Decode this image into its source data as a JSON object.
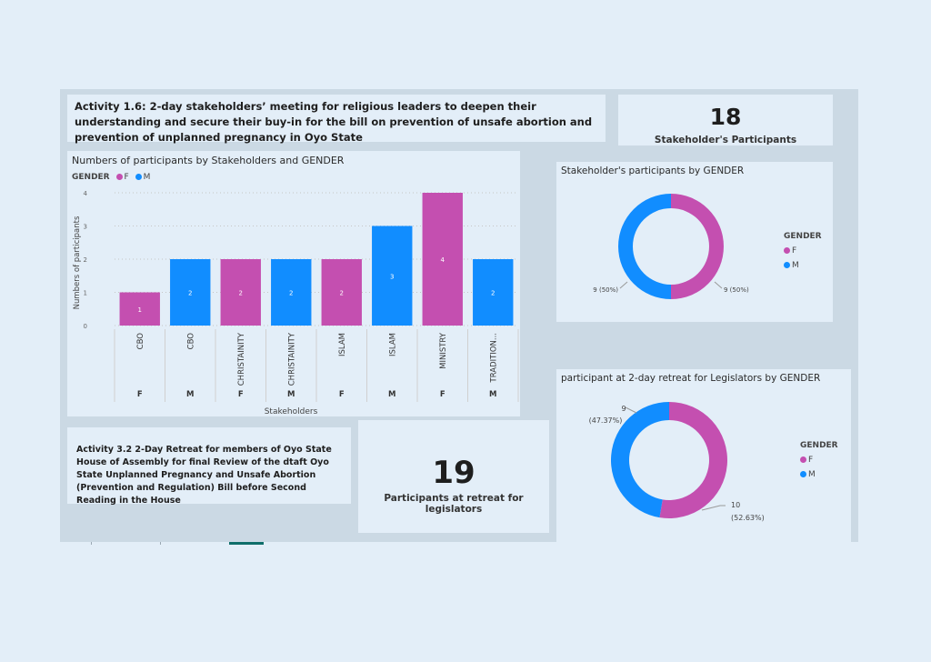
{
  "header": {
    "activity_1_6": "Activity 1.6: 2-day stakeholders’ meeting for religious leaders to deepen their understanding and secure their buy-in for the bill on prevention of unsafe abortion and prevention of unplanned pregnancy in Oyo State",
    "activity_3_2": "Activity 3.2 2-Day Retreat for members of Oyo State House of Assembly for final Review of the dtaft Oyo State Unplanned Pregnancy and Unsafe Abortion (Prevention and Regulation) Bill before Second Reading in the House"
  },
  "kpis": {
    "stakeholders": {
      "value": "18",
      "label": "Stakeholder's Participants"
    },
    "retreat": {
      "value": "19",
      "label": "Participants at retreat for legislators"
    }
  },
  "colors": {
    "F": "#c44fb0",
    "M": "#118dff",
    "background": "#e3eef8",
    "canvas": "#cbd9e4"
  },
  "chart_data": [
    {
      "type": "bar",
      "title": "Numbers of participants by Stakeholders and GENDER",
      "legend_title": "GENDER",
      "legend": [
        {
          "name": "F",
          "color": "#c44fb0"
        },
        {
          "name": "M",
          "color": "#118dff"
        }
      ],
      "xlabel": "Stakeholders",
      "ylabel": "Numbers of participants",
      "ylim": [
        0,
        4
      ],
      "yticks": [
        0,
        1,
        2,
        3,
        4
      ],
      "categories": [
        "CBO",
        "CBO",
        "CHRISTAINITY",
        "CHRISTAINITY",
        "ISLAM",
        "ISLAM",
        "MINISTRY",
        "TRADITION..."
      ],
      "genders": [
        "F",
        "M",
        "F",
        "M",
        "F",
        "M",
        "F",
        "M"
      ],
      "values": [
        1,
        2,
        2,
        2,
        2,
        3,
        4,
        2
      ],
      "grid": true
    },
    {
      "type": "pie",
      "title": "Stakeholder's participants by GENDER",
      "legend_title": "GENDER",
      "labels": [
        "F",
        "M"
      ],
      "values": [
        9,
        9
      ],
      "data_labels": [
        "9 (50%)",
        "9 (50%)"
      ],
      "donut": true
    },
    {
      "type": "pie",
      "title": "participant at 2-day retreat for Legislators by GENDER",
      "legend_title": "GENDER",
      "labels": [
        "F",
        "M"
      ],
      "values": [
        10,
        9
      ],
      "data_labels": [
        [
          "10",
          "(52.63%)"
        ],
        [
          "9",
          "(47.37%)"
        ]
      ],
      "donut": true
    }
  ]
}
